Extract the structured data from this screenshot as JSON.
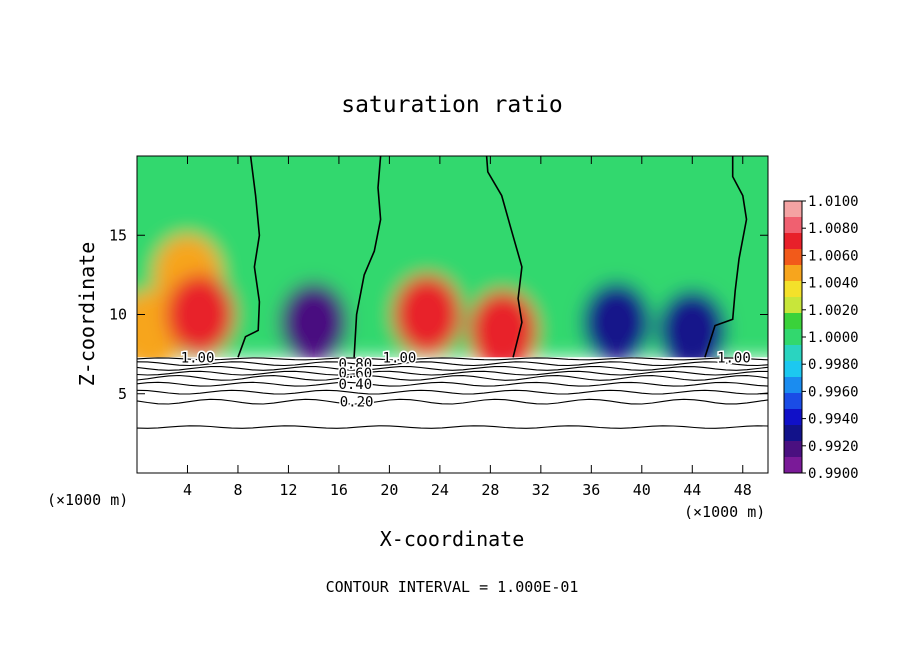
{
  "chart_data": {
    "type": "heatmap",
    "title": "saturation ratio",
    "xlabel": "X-coordinate",
    "ylabel": "Z-coordinate",
    "x_unit_left": "(×1000 m)",
    "x_unit_right": "(×1000 m)",
    "footer": "CONTOUR INTERVAL = 1.000E-01",
    "xlim": [
      0,
      50
    ],
    "ylim": [
      0,
      20
    ],
    "x_ticks": [
      "4",
      "8",
      "12",
      "16",
      "20",
      "24",
      "28",
      "32",
      "36",
      "40",
      "44",
      "48"
    ],
    "y_ticks": [
      "5",
      "10",
      "15"
    ],
    "colorbar": {
      "labels": [
        "1.0100",
        "1.0080",
        "1.0060",
        "1.0040",
        "1.0020",
        "1.0000",
        "0.9980",
        "0.9960",
        "0.9940",
        "0.9920",
        "0.9900"
      ],
      "colors": [
        "#f4a3a3",
        "#f06070",
        "#e8202a",
        "#f25a1a",
        "#f7a51d",
        "#f4e12a",
        "#c8e63a",
        "#3ad23a",
        "#32d86e",
        "#2ad4c0",
        "#1cc8f0",
        "#1a8cf0",
        "#1a4ce6",
        "#1010c8",
        "#12128a",
        "#4a1080",
        "#7a1a98"
      ]
    },
    "cloud_base_z": 7.3,
    "sample_points": [
      {
        "x": 1,
        "z": 9,
        "v": 1.0045
      },
      {
        "x": 4,
        "z": 12.5,
        "v": 1.0045
      },
      {
        "x": 5,
        "z": 10,
        "v": 1.008
      },
      {
        "x": 14,
        "z": 9.5,
        "v": 0.991
      },
      {
        "x": 23,
        "z": 10,
        "v": 1.007
      },
      {
        "x": 29,
        "z": 9,
        "v": 1.007
      },
      {
        "x": 38,
        "z": 9.5,
        "v": 0.992
      },
      {
        "x": 44,
        "z": 9,
        "v": 0.993
      },
      {
        "x": 30,
        "z": 18,
        "v": 1.0
      }
    ],
    "contour_labels": [
      {
        "text": "1.00",
        "x": 4.8,
        "z": 7.3
      },
      {
        "text": "0.80",
        "x": 17.3,
        "z": 6.9
      },
      {
        "text": "0.60",
        "x": 17.3,
        "z": 6.3
      },
      {
        "text": "0.40",
        "x": 17.3,
        "z": 5.6
      },
      {
        "text": "0.20",
        "x": 17.4,
        "z": 4.5
      },
      {
        "text": "1.00",
        "x": 20.8,
        "z": 7.3
      },
      {
        "text": "1.00",
        "x": 47.3,
        "z": 7.3
      }
    ],
    "contour_levels_below": [
      {
        "z": 7.2,
        "amp": 0.06
      },
      {
        "z": 6.9,
        "amp": 0.12
      },
      {
        "z": 6.6,
        "amp": 0.12
      },
      {
        "z": 6.3,
        "amp": 0.12
      },
      {
        "z": 6.0,
        "amp": 0.15
      },
      {
        "z": 5.6,
        "amp": 0.12
      },
      {
        "z": 5.1,
        "amp": 0.12
      },
      {
        "z": 4.5,
        "amp": 0.15
      },
      {
        "z": 2.9,
        "amp": 0.08
      }
    ],
    "saturation_contours": [
      [
        [
          8.0,
          7.3
        ],
        [
          8.6,
          8.6
        ],
        [
          9.6,
          9.0
        ],
        [
          9.7,
          10.8
        ],
        [
          9.3,
          13
        ],
        [
          9.7,
          15
        ],
        [
          9.4,
          17.5
        ],
        [
          9.0,
          20
        ]
      ],
      [
        [
          17.2,
          7.3
        ],
        [
          17.4,
          10
        ],
        [
          18.0,
          12.5
        ],
        [
          18.8,
          14
        ],
        [
          19.3,
          16
        ],
        [
          19.1,
          18
        ],
        [
          19.3,
          20
        ]
      ],
      [
        [
          29.8,
          7.3
        ],
        [
          30.5,
          9.5
        ],
        [
          30.2,
          11
        ],
        [
          30.5,
          13
        ],
        [
          29.6,
          15.5
        ],
        [
          28.9,
          17.5
        ],
        [
          27.8,
          19
        ],
        [
          27.7,
          20
        ]
      ],
      [
        [
          45.0,
          7.3
        ],
        [
          45.8,
          9.3
        ],
        [
          47.2,
          9.7
        ],
        [
          47.4,
          11.5
        ],
        [
          47.7,
          13.5
        ],
        [
          48.3,
          16
        ],
        [
          48.0,
          17.5
        ],
        [
          47.2,
          18.7
        ],
        [
          47.2,
          20
        ]
      ]
    ]
  }
}
